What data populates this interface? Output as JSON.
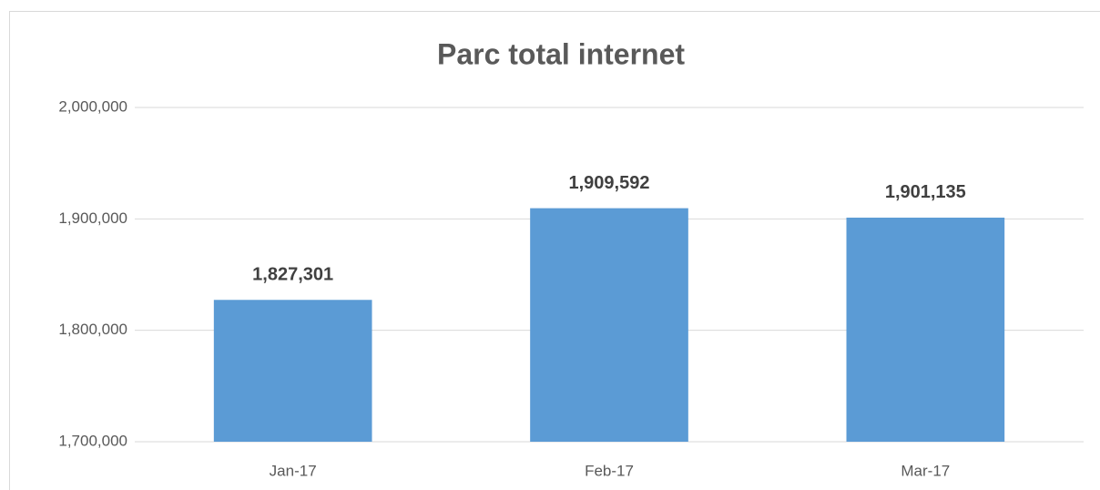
{
  "chart_data": {
    "type": "bar",
    "title": "Parc total internet",
    "categories": [
      "Jan-17",
      "Feb-17",
      "Mar-17"
    ],
    "values": [
      1827301,
      1909592,
      1901135
    ],
    "value_labels": [
      "1,827,301",
      "1,909,592",
      "1,901,135"
    ],
    "color": "#5b9bd5",
    "ylim": [
      1700000,
      2000000
    ],
    "yticks": [
      {
        "value": 1700000,
        "label": "1,700,000"
      },
      {
        "value": 1800000,
        "label": "1,800,000"
      },
      {
        "value": 1900000,
        "label": "1,900,000"
      },
      {
        "value": 2000000,
        "label": "2,000,000"
      }
    ],
    "grid": true
  }
}
